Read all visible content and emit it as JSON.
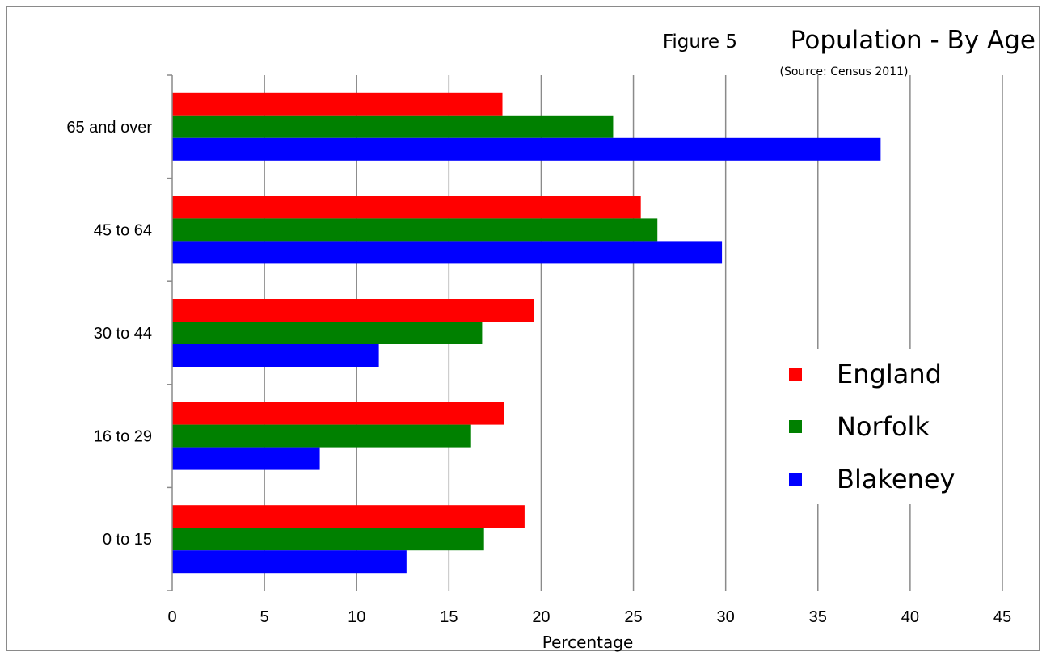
{
  "figure": {
    "prefix": "Figure 5",
    "title": "Population - By Age",
    "source": "(Source: Census 2011)"
  },
  "chart_data": {
    "type": "bar",
    "orientation": "horizontal",
    "categories": [
      "0 to 15",
      "16 to 29",
      "30 to 44",
      "45 to 64",
      "65 and over"
    ],
    "series": [
      {
        "name": "England",
        "color": "#ff0000",
        "values": [
          19.1,
          18.0,
          19.6,
          25.4,
          17.9
        ]
      },
      {
        "name": "Norfolk",
        "color": "#008000",
        "values": [
          16.9,
          16.2,
          16.8,
          26.3,
          23.9
        ]
      },
      {
        "name": "Blakeney",
        "color": "#0000ff",
        "values": [
          12.7,
          8.0,
          11.2,
          29.8,
          38.4
        ]
      }
    ],
    "xlabel": "Percentage",
    "ylabel": "",
    "xlim": [
      0,
      45
    ],
    "xticks": [
      0,
      5,
      10,
      15,
      20,
      25,
      30,
      35,
      40,
      45
    ],
    "grid": "vertical",
    "legend_position": "right"
  }
}
